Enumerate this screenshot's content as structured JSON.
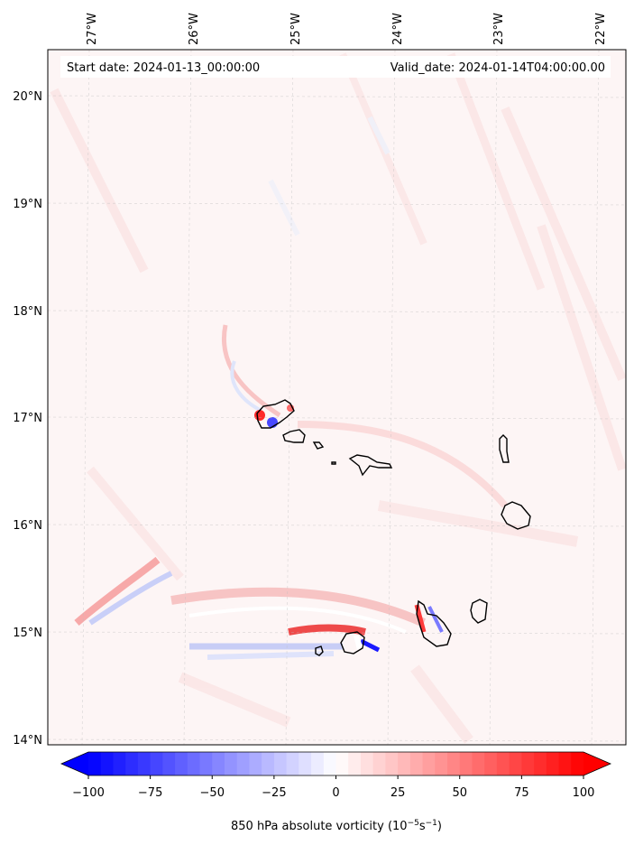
{
  "map": {
    "start_date": "Start date: 2024-01-13_00:00:00",
    "valid_date": "Valid_date: 2024-01-14T04:00:00.00",
    "lon_labels": [
      "27°W",
      "26°W",
      "25°W",
      "24°W",
      "23°W",
      "22°W"
    ],
    "lat_labels": [
      "20°N",
      "19°N",
      "18°N",
      "17°N",
      "16°N",
      "15°N",
      "14°N"
    ],
    "lon_values": [
      -27,
      -26,
      -25,
      -24,
      -23,
      -22
    ],
    "lat_values": [
      20,
      19,
      18,
      17,
      16,
      15,
      14
    ],
    "extent": {
      "lon_min": -27.35,
      "lon_max": -21.8,
      "lat_min": 13.96,
      "lat_max": 20.42
    },
    "gridlines": true,
    "projection": "PlateCarree",
    "background_color": "#fdf5f5"
  },
  "colorbar": {
    "ticks": [
      "−100",
      "−75",
      "−50",
      "−25",
      "0",
      "25",
      "50",
      "75",
      "100"
    ],
    "tick_values": [
      -100,
      -75,
      -50,
      -25,
      0,
      25,
      50,
      75,
      100
    ],
    "range": [
      -100,
      100
    ],
    "extend": "both",
    "colormap": "bwr",
    "label_prefix": "850 hPa absolute vorticity (10",
    "label_exp1": "−5",
    "label_mid": "s",
    "label_exp2": "−1",
    "label_suffix": ")",
    "low_color": "#0000ff",
    "mid_color": "#ffffff",
    "high_color": "#ff0000"
  }
}
